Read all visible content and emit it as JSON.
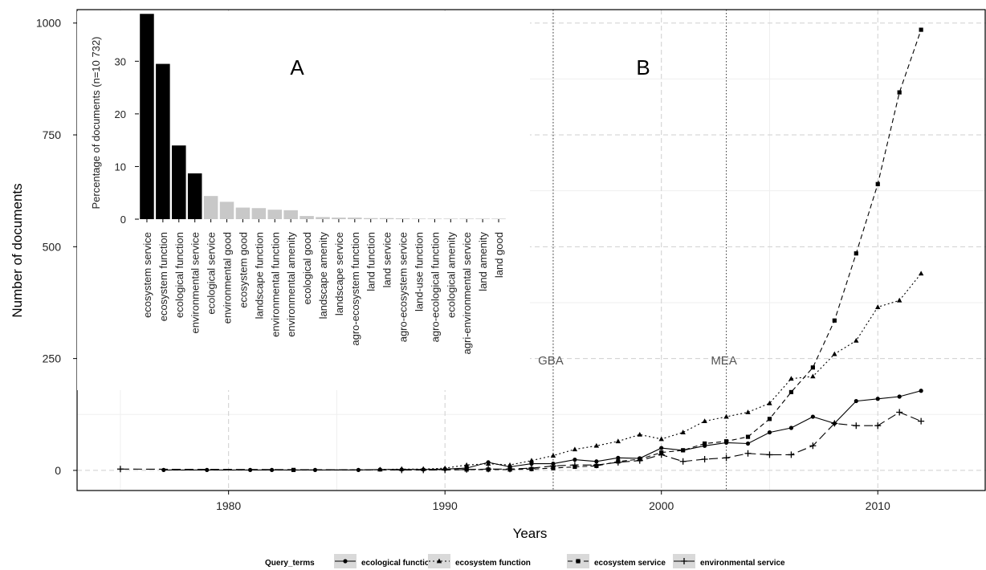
{
  "chart_data": [
    {
      "panel": "B",
      "type": "line",
      "xlabel": "Years",
      "ylabel": "Number of documents",
      "xlim": [
        1973,
        2015
      ],
      "ylim": [
        -45,
        1030
      ],
      "x_ticks": [
        1980,
        1990,
        2000,
        2010
      ],
      "y_ticks": [
        0,
        250,
        500,
        750,
        1000
      ],
      "grid": true,
      "legend_title": "Query_terms",
      "legend_position": "bottom",
      "events": [
        {
          "label": "GBA",
          "x": 1995
        },
        {
          "label": "MEA",
          "x": 2003
        }
      ],
      "series": [
        {
          "name": "ecological function",
          "dash": "solid",
          "marker": "circle",
          "x": [
            1977,
            1979,
            1981,
            1982,
            1984,
            1986,
            1987,
            1988,
            1989,
            1990,
            1991,
            1992,
            1993,
            1994,
            1995,
            1996,
            1997,
            1998,
            1999,
            2000,
            2001,
            2002,
            2003,
            2004,
            2005,
            2006,
            2007,
            2008,
            2009,
            2010,
            2011,
            2012
          ],
          "y": [
            1,
            1,
            1,
            1,
            1,
            1,
            2,
            2,
            2,
            3,
            5,
            18,
            8,
            15,
            15,
            24,
            20,
            28,
            27,
            50,
            45,
            55,
            62,
            60,
            85,
            95,
            120,
            105,
            155,
            160,
            165,
            178
          ]
        },
        {
          "name": "ecosystem function",
          "dash": "dotted",
          "marker": "triangle",
          "x": [
            1987,
            1988,
            1989,
            1990,
            1991,
            1992,
            1993,
            1994,
            1995,
            1996,
            1997,
            1998,
            1999,
            2000,
            2001,
            2002,
            2003,
            2004,
            2005,
            2006,
            2007,
            2008,
            2009,
            2010,
            2011,
            2012
          ],
          "y": [
            2,
            3,
            3,
            5,
            12,
            15,
            12,
            22,
            33,
            47,
            55,
            65,
            80,
            70,
            85,
            110,
            120,
            130,
            150,
            205,
            210,
            260,
            290,
            365,
            380,
            440
          ]
        },
        {
          "name": "ecosystem service",
          "dash": "dashed",
          "marker": "square",
          "x": [
            1983,
            1991,
            1992,
            1993,
            1994,
            1995,
            1996,
            1997,
            1998,
            1999,
            2000,
            2001,
            2002,
            2003,
            2004,
            2005,
            2006,
            2007,
            2008,
            2009,
            2010,
            2011,
            2012
          ],
          "y": [
            1,
            2,
            2,
            2,
            3,
            5,
            8,
            10,
            20,
            25,
            40,
            45,
            60,
            65,
            75,
            115,
            175,
            230,
            335,
            485,
            640,
            845,
            985
          ]
        },
        {
          "name": "environmental service",
          "dash": "longdash",
          "marker": "plus",
          "x": [
            1975,
            1988,
            1989,
            1990,
            1991,
            1992,
            1993,
            1994,
            1995,
            1996,
            1997,
            1998,
            1999,
            2000,
            2001,
            2002,
            2003,
            2004,
            2005,
            2006,
            2007,
            2008,
            2009,
            2010,
            2011,
            2012
          ],
          "y": [
            3,
            1,
            1,
            1,
            2,
            3,
            3,
            5,
            10,
            12,
            12,
            18,
            22,
            35,
            20,
            25,
            28,
            38,
            35,
            35,
            55,
            105,
            100,
            100,
            130,
            110
          ]
        }
      ]
    },
    {
      "panel": "A",
      "type": "bar",
      "ylabel": "Percentage of documents (n=10 732)",
      "ylim": [
        0,
        39.5
      ],
      "y_ticks": [
        0,
        10,
        20,
        30
      ],
      "categories": [
        "ecosystem service",
        "ecosystem function",
        "ecological function",
        "environmental service",
        "ecological service",
        "environmental good",
        "ecosystem good",
        "landscape function",
        "environmental function",
        "environmental amenity",
        "ecological good",
        "landscape amenity",
        "landscape service",
        "agro-ecosystem function",
        "land function",
        "land service",
        "agro-ecosystem service",
        "land-use function",
        "agro-ecological function",
        "ecological amenity",
        "agri-environmental service",
        "land amenity",
        "land good"
      ],
      "values": [
        39,
        29.5,
        14,
        8.7,
        4.4,
        3.3,
        2.2,
        2.1,
        1.8,
        1.7,
        0.6,
        0.4,
        0.3,
        0.3,
        0.2,
        0.2,
        0.15,
        0.1,
        0.1,
        0.1,
        0.1,
        0.1,
        0.1
      ],
      "highlight_count": 4,
      "colors": {
        "highlight": "#000000",
        "other": "#c8c8c8"
      }
    }
  ],
  "panel_labels": {
    "a": "A",
    "b": "B"
  }
}
